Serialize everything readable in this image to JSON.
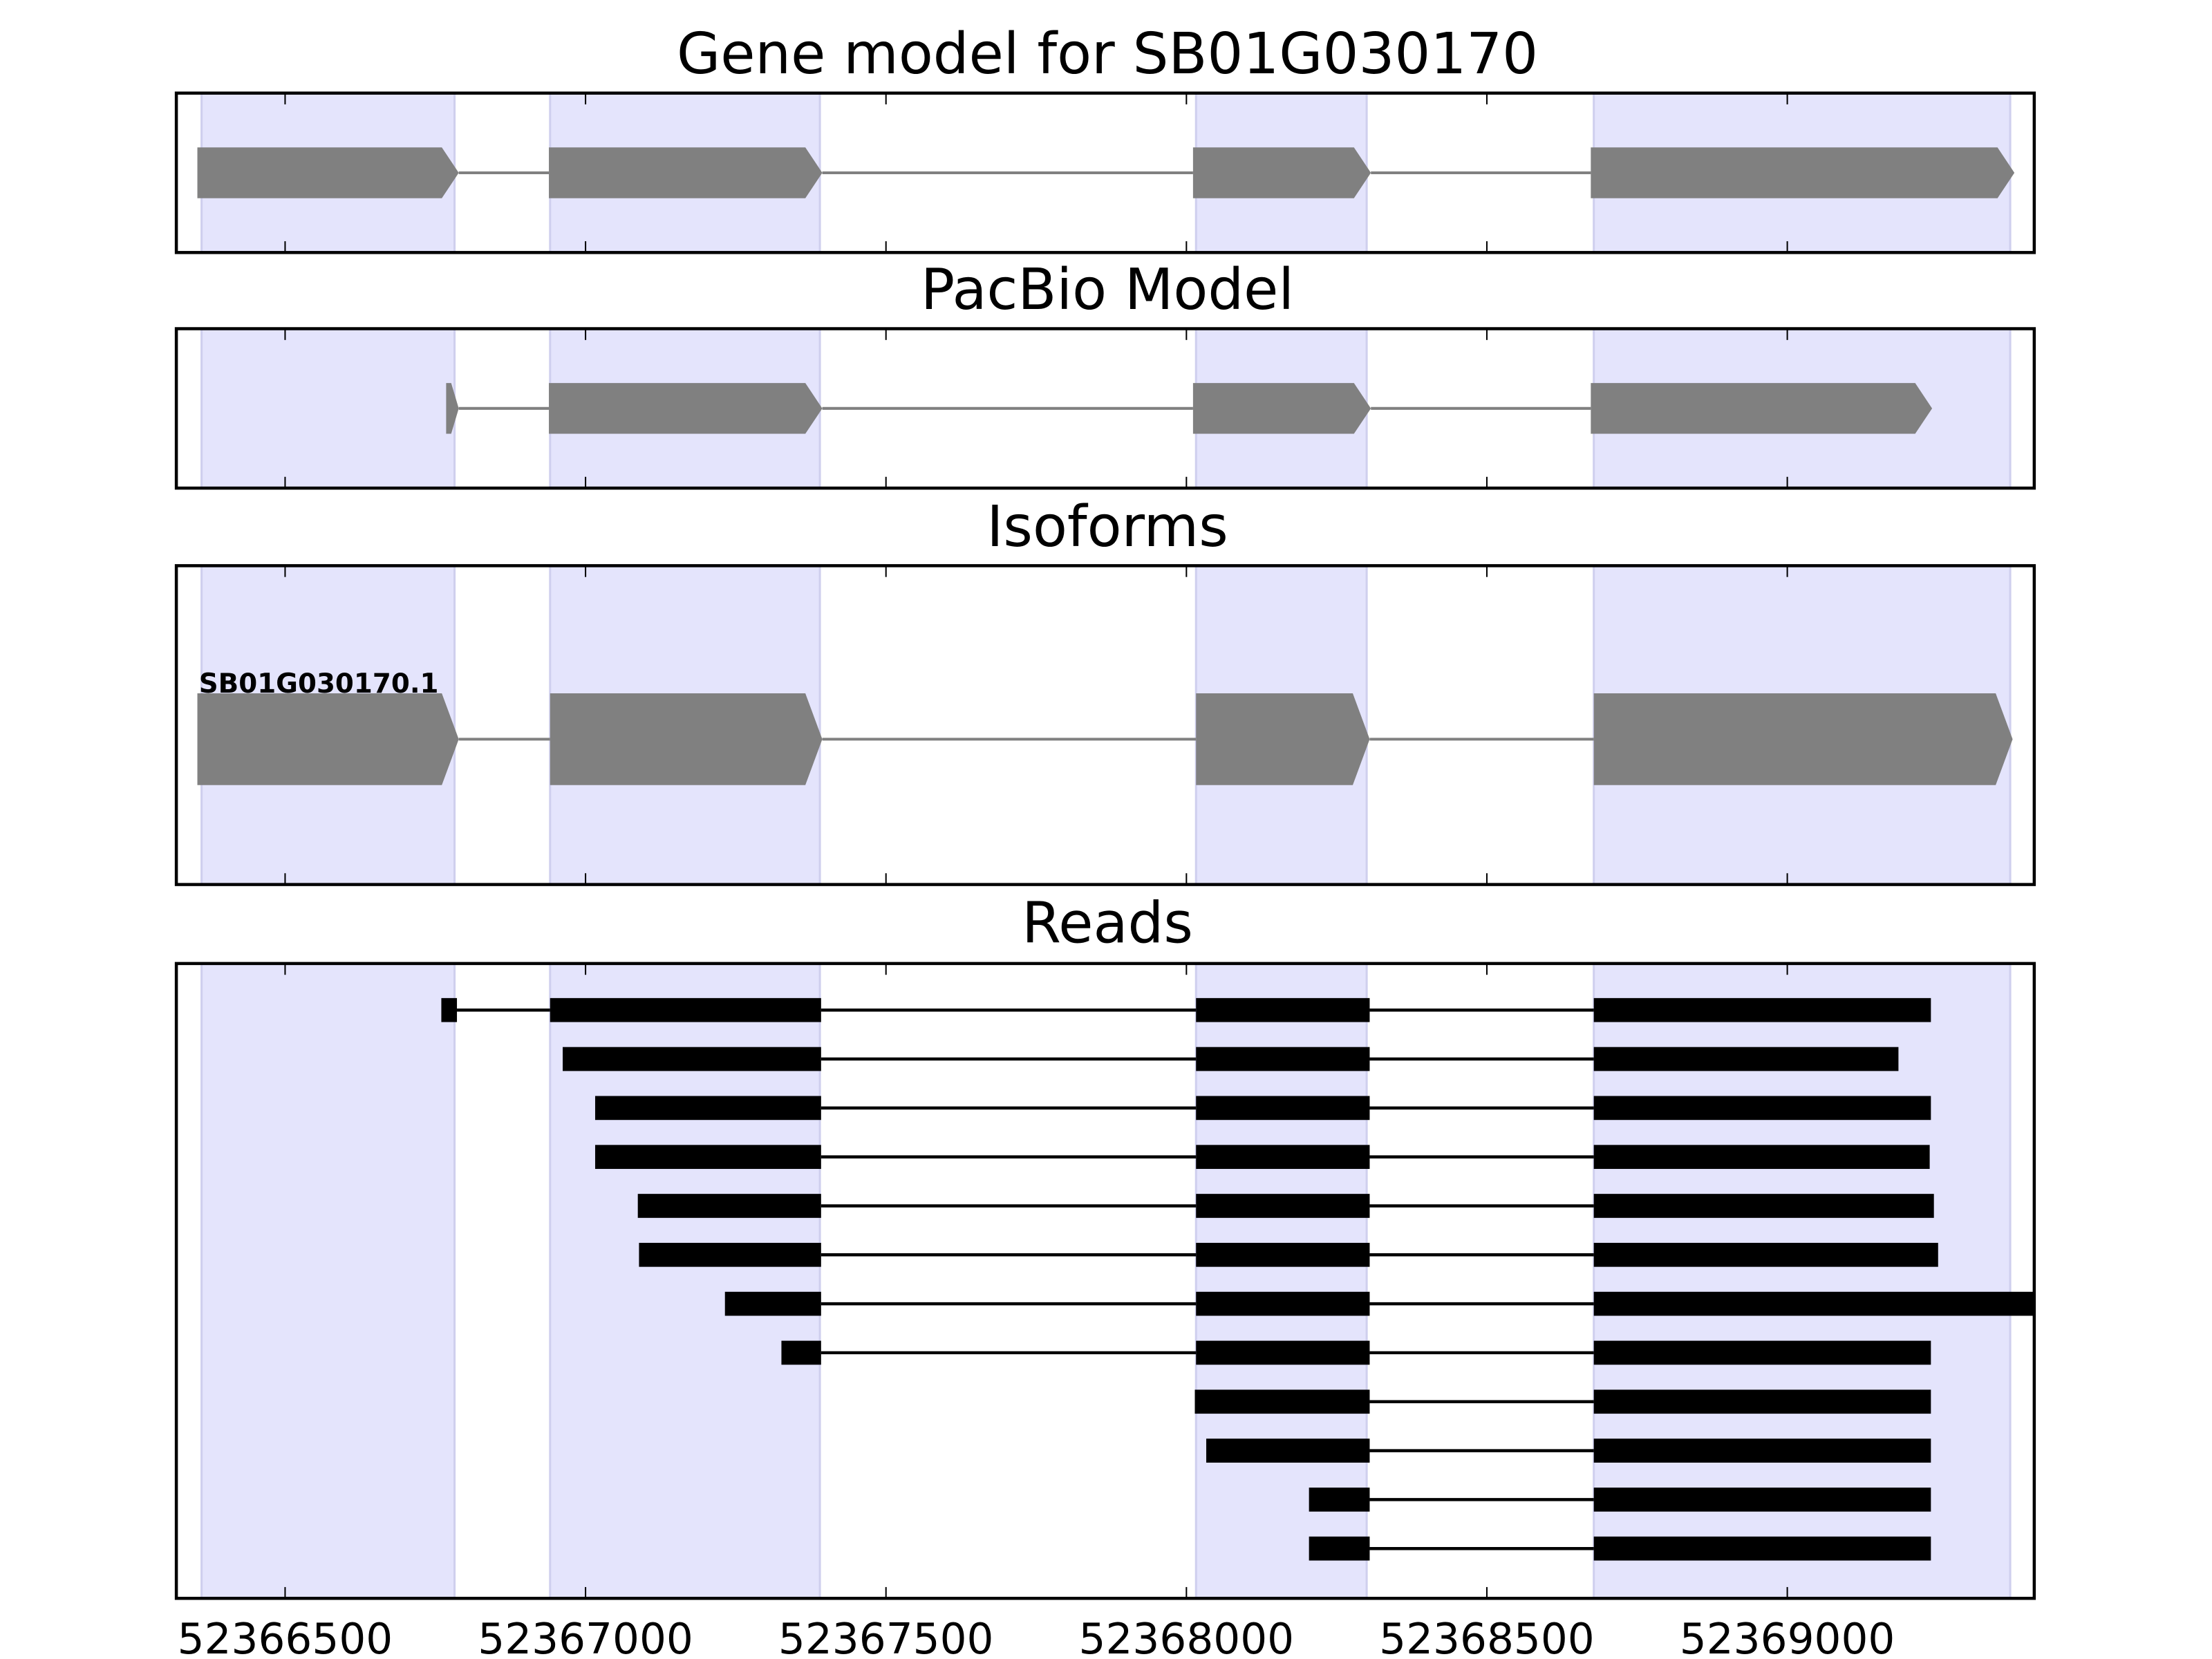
{
  "chart_data": {
    "type": "gene-track",
    "xlim": [
      52366319,
      52369411
    ],
    "x_ticks": [
      52366500,
      52367000,
      52367500,
      52368000,
      52368500,
      52369000
    ],
    "x_tick_labels": [
      "52366500",
      "52367000",
      "52367500",
      "52368000",
      "52368500",
      "52369000"
    ],
    "colors": {
      "shade": "#e4e4fc",
      "shade_edge": "#cfcfee",
      "model": "#808080",
      "reads": "#000000"
    },
    "shaded_regions": [
      [
        52366361,
        52366782
      ],
      [
        52366941,
        52367390
      ],
      [
        52368016,
        52368300
      ],
      [
        52368678,
        52369371
      ]
    ],
    "panels": [
      {
        "title": "Gene model for SB01G030170",
        "kind": "model",
        "tracks": [
          {
            "exons": [
              [
                52366354,
                52366789
              ],
              [
                52366939,
                52367394
              ],
              [
                52368011,
                52368307
              ],
              [
                52368673,
                52369378
              ]
            ]
          }
        ]
      },
      {
        "title": "PacBio Model",
        "kind": "model",
        "tracks": [
          {
            "exons": [
              [
                52366768,
                52366789
              ],
              [
                52366939,
                52367394
              ],
              [
                52368011,
                52368307
              ],
              [
                52368673,
                52369241
              ]
            ]
          }
        ]
      },
      {
        "title": "Isoforms",
        "kind": "model",
        "tracks": [
          {
            "label": "SB01G030170.1",
            "exons": [
              [
                52366354,
                52366789
              ],
              [
                52366941,
                52367394
              ],
              [
                52368016,
                52368305
              ],
              [
                52368678,
                52369375
              ]
            ]
          }
        ]
      },
      {
        "title": "Reads",
        "kind": "reads",
        "tracks": [
          {
            "exons": [
              [
                52366760,
                52366786
              ],
              [
                52366941,
                52367392
              ],
              [
                52368016,
                52368305
              ],
              [
                52368678,
                52369239
              ]
            ]
          },
          {
            "exons": [
              [
                52366962,
                52367392
              ],
              [
                52368016,
                52368305
              ],
              [
                52368678,
                52369185
              ]
            ]
          },
          {
            "exons": [
              [
                52367016,
                52367392
              ],
              [
                52368016,
                52368305
              ],
              [
                52368678,
                52369239
              ]
            ]
          },
          {
            "exons": [
              [
                52367016,
                52367392
              ],
              [
                52368016,
                52368305
              ],
              [
                52368678,
                52369237
              ]
            ]
          },
          {
            "exons": [
              [
                52367087,
                52367392
              ],
              [
                52368016,
                52368305
              ],
              [
                52368678,
                52369244
              ]
            ]
          },
          {
            "exons": [
              [
                52367089,
                52367392
              ],
              [
                52368016,
                52368305
              ],
              [
                52368678,
                52369251
              ]
            ]
          },
          {
            "exons": [
              [
                52367232,
                52367392
              ],
              [
                52368016,
                52368305
              ],
              [
                52368678,
                52369411
              ]
            ]
          },
          {
            "exons": [
              [
                52367326,
                52367392
              ],
              [
                52368016,
                52368305
              ],
              [
                52368678,
                52369239
              ]
            ]
          },
          {
            "exons": [
              [
                52368014,
                52368305
              ],
              [
                52368678,
                52369239
              ]
            ]
          },
          {
            "exons": [
              [
                52368033,
                52368305
              ],
              [
                52368678,
                52369239
              ]
            ]
          },
          {
            "exons": [
              [
                52368204,
                52368305
              ],
              [
                52368678,
                52369239
              ]
            ]
          },
          {
            "exons": [
              [
                52368204,
                52368305
              ],
              [
                52368678,
                52369239
              ]
            ]
          }
        ]
      }
    ]
  }
}
